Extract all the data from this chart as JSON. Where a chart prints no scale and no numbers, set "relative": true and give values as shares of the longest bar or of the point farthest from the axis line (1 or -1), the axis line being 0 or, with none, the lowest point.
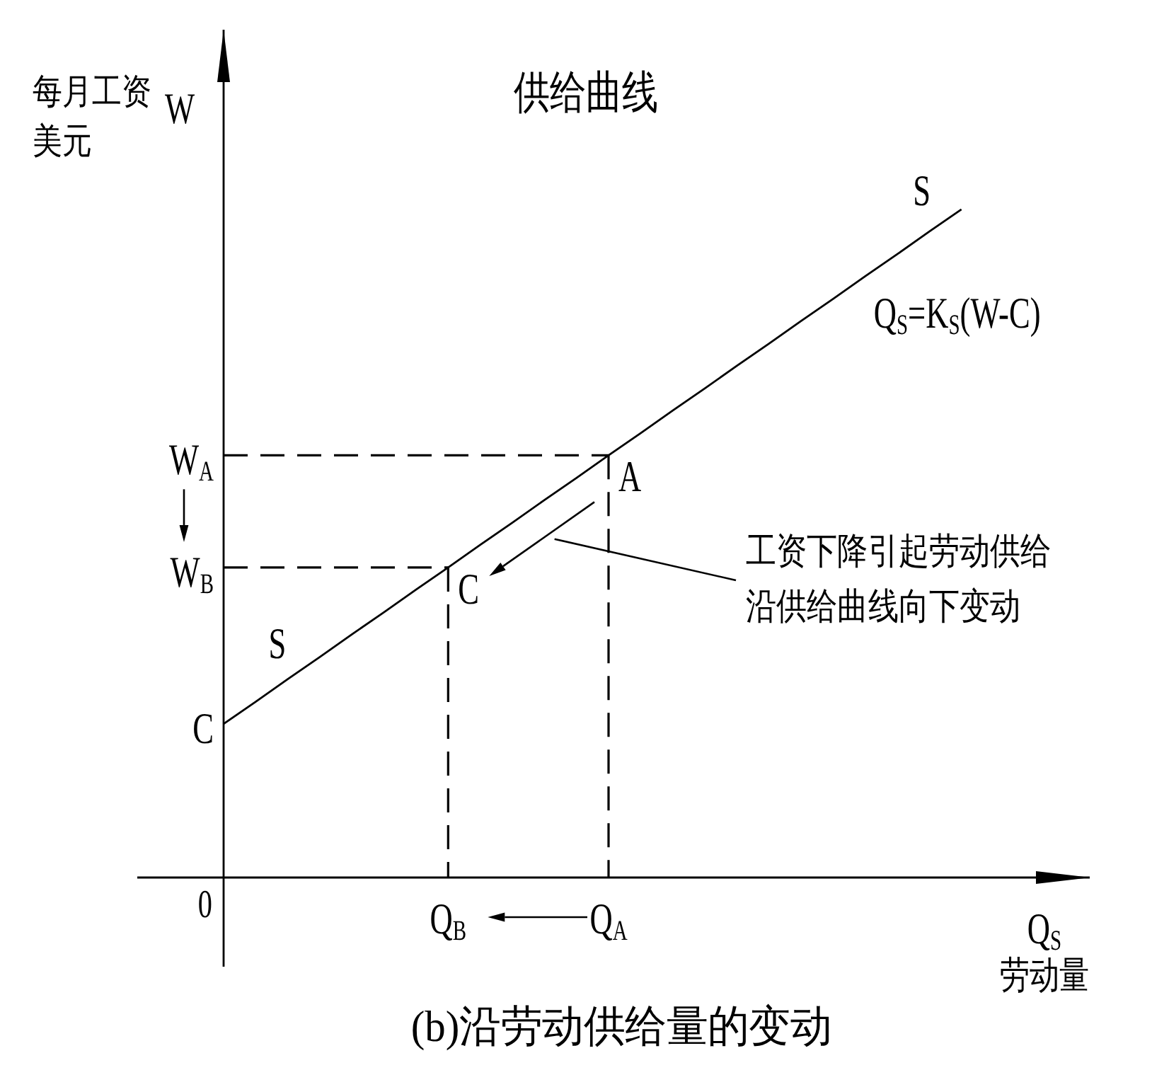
{
  "chart_data": {
    "type": "line",
    "relative": true,
    "title": "供给曲线",
    "xlabel": "劳动量",
    "ylabel": "每月工资美元",
    "marker": "none",
    "line_style": "solid",
    "categories": [
      null,
      null,
      null,
      null,
      null,
      null,
      null,
      "Q$_{B}$",
      null,
      null,
      null,
      null,
      "Q$_{A}$",
      null,
      null,
      null,
      null,
      null,
      null,
      null,
      null,
      null,
      null,
      null,
      null,
      null,
      null,
      null
    ],
    "series": [
      {
        "name": "S",
        "color": "#000000",
        "values": [
          0.23,
          0.263,
          0.297,
          0.33,
          0.364,
          0.397,
          0.431,
          0.464,
          0.498,
          0.531,
          0.565,
          0.598,
          0.632,
          0.665,
          0.699,
          0.732,
          0.766,
          0.799,
          0.833,
          0.866,
          0.9,
          0.933,
          0.967,
          1,
          null,
          null,
          null,
          null
        ]
      },
      {
        "color": "#000000",
        "line_style": "dashed",
        "values": [
          0.632,
          0.632,
          0.632,
          0.632,
          0.632,
          0.632,
          0.632,
          0.632,
          0.632,
          0.632,
          0.632,
          0.632,
          0.632,
          null,
          null,
          null,
          null,
          null,
          null,
          null,
          null,
          null,
          null,
          null,
          null,
          null,
          null,
          null
        ]
      },
      {
        "color": "#000000",
        "line_style": "dashed",
        "values": [
          0.464,
          0.464,
          0.464,
          0.464,
          0.464,
          0.464,
          0.464,
          0.464,
          null,
          null,
          null,
          null,
          null,
          null,
          null,
          null,
          null,
          null,
          null,
          null,
          null,
          null,
          null,
          null,
          null,
          null,
          null,
          null
        ]
      },
      {
        "color": "#000000",
        "line_style": "dashed",
        "x": [
          "Q$_{A}$",
          "Q$_{A}$"
        ],
        "values": [
          0.632,
          0
        ]
      },
      {
        "color": "#000000",
        "line_style": "dashed",
        "x": [
          "Q$_{B}$",
          "Q$_{B}$"
        ],
        "values": [
          0.464,
          0
        ]
      }
    ],
    "annotations": [
      "Q$_{S}$=K$_{S}$(W-C)",
      "W$_{A}$",
      "W$_{B}$",
      "工资下降引起劳动供给沿供给曲线向下变动",
      "(b)沿劳动供给量的变动",
      "C",
      "0",
      "W",
      "Q$_{S}$",
      {
        "text": "A",
        "x": "Q$_{A}$",
        "y": 0.632
      },
      {
        "text": "C",
        "x": "Q$_{B}$",
        "y": 0.464
      }
    ]
  }
}
